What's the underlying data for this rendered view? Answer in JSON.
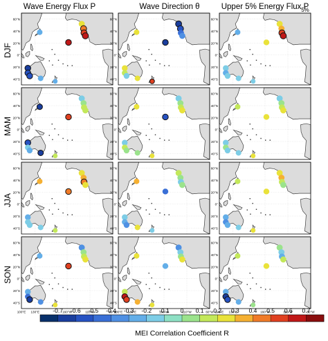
{
  "chart_data": {
    "type": "heatmap",
    "columns": [
      "Wave Energy Flux P",
      "Wave Direction θ",
      "Upper 5% Energy Flux P"
    ],
    "column_subscript": "5%",
    "rows": [
      "DJF",
      "MAM",
      "JJA",
      "SON"
    ],
    "lat_ticks": [
      "60°N",
      "40°N",
      "20°N",
      "0°",
      "20°S",
      "40°S"
    ],
    "lon_ticks": [
      "100°E",
      "130°E",
      "160°W",
      "110°W",
      "60°W"
    ],
    "colorbar": {
      "label": "MEI Correlation Coefficient R",
      "ticks": [
        "-0.7",
        "-0.6",
        "-0.5",
        "-0.4",
        "-0.3",
        "-0.2",
        "-0.1",
        "0",
        "0.1",
        "0.2",
        "0.3",
        "0.4",
        "0.5",
        "0.6",
        "0.7"
      ],
      "colors": [
        "#08306b",
        "#1a3e9e",
        "#2652c2",
        "#3a6fd6",
        "#4f90e3",
        "#63aee8",
        "#7dcde6",
        "#8ee0c4",
        "#9be38c",
        "#c3e85a",
        "#e9e23a",
        "#f5b032",
        "#f07b28",
        "#e04020",
        "#c01818",
        "#8a0d0d"
      ]
    },
    "sites": {
      "hawaii": [
        -0.1,
        0.6
      ],
      "us_west_coast": [],
      "australia_nw": [],
      "australia_se": [],
      "new_zealand": []
    },
    "panels": [
      {
        "row": "DJF",
        "column": "Wave Energy Flux P",
        "values": {
          "hawaii": 0.7,
          "nw_pacific": -0.2,
          "us_coast": [
            0.3,
            0.5,
            0.6,
            0.7
          ],
          "aus_w": [
            -0.6,
            -0.5,
            -0.5
          ],
          "aus_s": -0.2,
          "nz": -0.2
        }
      },
      {
        "row": "DJF",
        "column": "Wave Direction θ",
        "values": {
          "hawaii": -0.6,
          "nw_pacific": 0.3,
          "us_coast": [
            -0.6,
            -0.5,
            -0.4,
            -0.3,
            -0.2
          ],
          "aus_w": [
            0.3,
            0.2,
            -0.1
          ],
          "aus_s": 0.3,
          "nz": 0.6
        }
      },
      {
        "row": "DJF",
        "column": "Upper 5% Energy Flux P",
        "values": {
          "hawaii": 0.3,
          "nw_pacific": -0.2,
          "us_coast": [
            0.3,
            0.4,
            0.6,
            0.7
          ],
          "aus_w": [
            -0.1,
            -0.2,
            -0.1
          ],
          "aus_s": -0.1,
          "nz": -0.1
        }
      },
      {
        "row": "MAM",
        "column": "Wave Energy Flux P",
        "values": {
          "hawaii": 0.6,
          "nw_pacific": -0.6,
          "us_coast": [
            -0.1,
            0.1,
            0.2,
            0.2
          ],
          "aus_w": [
            -0.5,
            -0.1,
            -0.2
          ],
          "aus_s": -0.6,
          "nz": 0.2
        }
      },
      {
        "row": "MAM",
        "column": "Wave Direction θ",
        "values": {
          "hawaii": -0.5,
          "nw_pacific": 0.3,
          "us_coast": [
            -0.1,
            0.1,
            0.2,
            0.3
          ],
          "aus_w": [
            -0.1,
            0.2,
            0.1
          ],
          "aus_s": 0.1,
          "nz": 0.3
        }
      },
      {
        "row": "MAM",
        "column": "Upper 5% Energy Flux P",
        "values": {
          "hawaii": 0.3,
          "nw_pacific": 0.2,
          "us_coast": [
            -0.1,
            0.1,
            0.2,
            0.3
          ],
          "aus_w": [
            -0.1,
            0.1,
            -0.1
          ],
          "aus_s": -0.1,
          "nz": 0.3
        }
      },
      {
        "row": "JJA",
        "column": "Wave Energy Flux P",
        "values": {
          "hawaii": 0.5,
          "nw_pacific": 0.4,
          "us_coast": [
            0.3,
            0.4,
            0.5,
            0.3
          ],
          "aus_w": [
            -0.2,
            -0.1,
            -0.1
          ],
          "aus_s": -0.1,
          "nz": 0.2
        }
      },
      {
        "row": "JJA",
        "column": "Wave Direction θ",
        "values": {
          "hawaii": -0.4,
          "nw_pacific": 0.4,
          "us_coast": [
            0.2,
            0.1,
            -0.1,
            0.1
          ],
          "aus_w": [
            -0.1,
            -0.2,
            -0.3
          ],
          "aus_s": 0.3,
          "nz": -0.1
        }
      },
      {
        "row": "JJA",
        "column": "Upper 5% Energy Flux P",
        "values": {
          "hawaii": 0.3,
          "nw_pacific": 0.2,
          "us_coast": [
            0.3,
            0.4,
            0.2,
            0.1
          ],
          "aus_w": [
            -0.2,
            -0.3,
            -0.2
          ],
          "aus_s": -0.1,
          "nz": 0.3
        }
      },
      {
        "row": "SON",
        "column": "Wave Energy Flux P",
        "values": {
          "hawaii": 0.6,
          "nw_pacific": -0.2,
          "us_coast": [
            -0.3,
            0.1,
            0.2,
            0.3
          ],
          "aus_w": [
            -0.2,
            -0.4,
            -0.6
          ],
          "aus_s": -0.3,
          "nz": 0.3
        }
      },
      {
        "row": "SON",
        "column": "Wave Direction θ",
        "values": {
          "hawaii": -0.2,
          "nw_pacific": 0.3,
          "us_coast": [
            -0.3,
            -0.1,
            0.1,
            0.3
          ],
          "aus_w": [
            0.2,
            0.7,
            0.6
          ],
          "aus_s": 0.4,
          "nz": 0.3
        }
      },
      {
        "row": "SON",
        "column": "Upper 5% Energy Flux P",
        "values": {
          "hawaii": 0.3,
          "nw_pacific": 0.2,
          "us_coast": [
            0.1,
            -0.1,
            -0.2,
            0.2
          ],
          "aus_w": [
            -0.2,
            -0.6,
            -0.5
          ],
          "aus_s": -0.2,
          "nz": 0.1
        }
      }
    ]
  }
}
